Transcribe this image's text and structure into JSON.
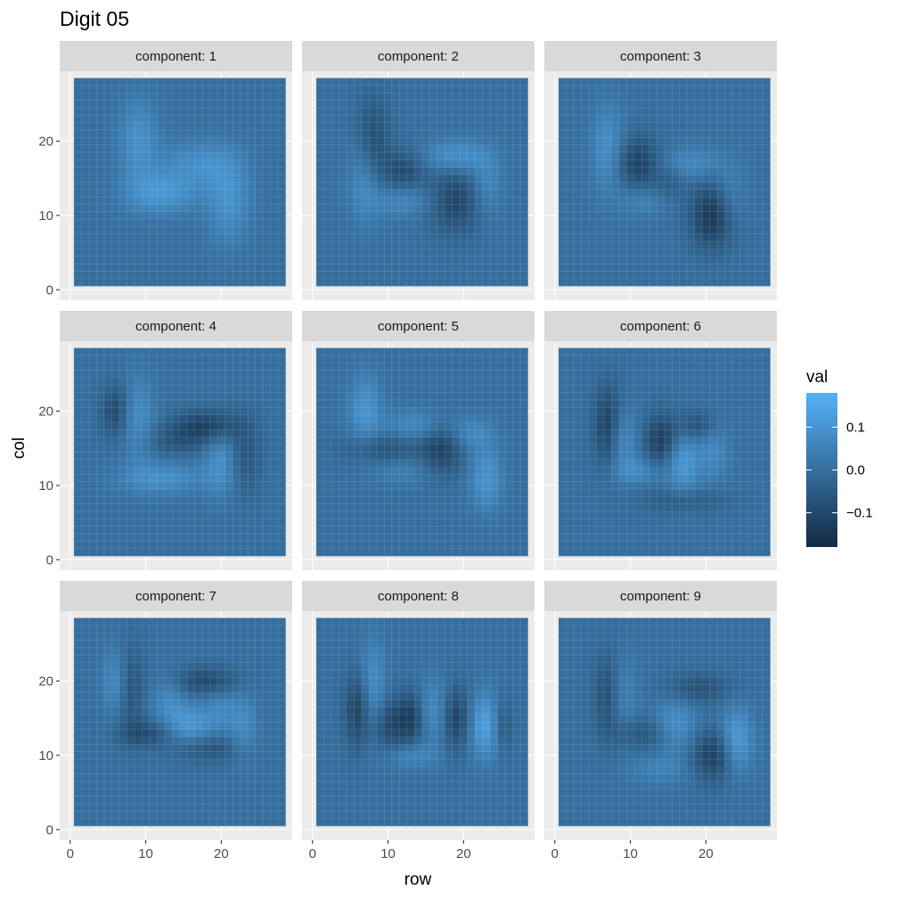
{
  "chart_data": {
    "type": "heatmap",
    "title": "Digit 05",
    "xlabel": "row",
    "ylabel": "col",
    "facet_prefix": "component: ",
    "facets": [
      "1",
      "2",
      "3",
      "4",
      "5",
      "6",
      "7",
      "8",
      "9"
    ],
    "grid_size": [
      28,
      28
    ],
    "xlim": [
      0,
      28
    ],
    "ylim": [
      0,
      28
    ],
    "x_ticks": [
      0,
      10,
      20
    ],
    "x_tick_labels": [
      "0",
      "10",
      "20"
    ],
    "y_ticks": [
      0,
      10,
      20
    ],
    "y_tick_labels": [
      "0",
      "10",
      "20"
    ],
    "legend": {
      "title": "val",
      "position": "right",
      "breaks": [
        0.1,
        0.0,
        -0.1
      ],
      "labels": [
        "0.1",
        "0.0",
        "−0.1"
      ],
      "range": [
        -0.18,
        0.18
      ],
      "low_color": "#132B43",
      "high_color": "#56B1F7"
    },
    "components": [
      {
        "name": "component: 1",
        "blobs": [
          {
            "x": 9,
            "y": 20,
            "sx": 1.8,
            "sy": 4,
            "v": 0.09
          },
          {
            "x": 12,
            "y": 13,
            "sx": 3.5,
            "sy": 2,
            "v": 0.1
          },
          {
            "x": 17,
            "y": 17,
            "sx": 3.5,
            "sy": 2.2,
            "v": 0.08
          },
          {
            "x": 21,
            "y": 12,
            "sx": 2,
            "sy": 4,
            "v": 0.09
          }
        ]
      },
      {
        "name": "component: 2",
        "blobs": [
          {
            "x": 8,
            "y": 20,
            "sx": 1.5,
            "sy": 4,
            "v": -0.1
          },
          {
            "x": 7,
            "y": 15,
            "sx": 1.5,
            "sy": 4,
            "v": 0.08
          },
          {
            "x": 12,
            "y": 12,
            "sx": 3,
            "sy": 1.5,
            "v": 0.07
          },
          {
            "x": 12,
            "y": 16,
            "sx": 2,
            "sy": 2,
            "v": -0.09
          },
          {
            "x": 19,
            "y": 18,
            "sx": 3,
            "sy": 1.5,
            "v": 0.1
          },
          {
            "x": 19,
            "y": 12,
            "sx": 2.5,
            "sy": 3,
            "v": -0.11
          },
          {
            "x": 23,
            "y": 14,
            "sx": 1.5,
            "sy": 3,
            "v": 0.07
          }
        ]
      },
      {
        "name": "component: 3",
        "blobs": [
          {
            "x": 7,
            "y": 19,
            "sx": 1.5,
            "sy": 4,
            "v": 0.09
          },
          {
            "x": 11,
            "y": 17,
            "sx": 2,
            "sy": 2.5,
            "v": -0.12
          },
          {
            "x": 12,
            "y": 12,
            "sx": 2.5,
            "sy": 1.5,
            "v": 0.06
          },
          {
            "x": 18,
            "y": 17,
            "sx": 3,
            "sy": 1.5,
            "v": 0.07
          },
          {
            "x": 21,
            "y": 10,
            "sx": 2,
            "sy": 3,
            "v": -0.16
          },
          {
            "x": 23,
            "y": 12,
            "sx": 1.5,
            "sy": 3,
            "v": 0.07
          },
          {
            "x": 15,
            "y": 14,
            "sx": 1.5,
            "sy": 2,
            "v": -0.05
          }
        ]
      },
      {
        "name": "component: 4",
        "blobs": [
          {
            "x": 6,
            "y": 20,
            "sx": 1.3,
            "sy": 2.5,
            "v": -0.1
          },
          {
            "x": 9,
            "y": 19,
            "sx": 1.5,
            "sy": 4,
            "v": 0.08
          },
          {
            "x": 12,
            "y": 11,
            "sx": 4,
            "sy": 1.5,
            "v": 0.09
          },
          {
            "x": 14,
            "y": 16,
            "sx": 3,
            "sy": 1.5,
            "v": -0.06
          },
          {
            "x": 18,
            "y": 18,
            "sx": 3,
            "sy": 1.5,
            "v": -0.12
          },
          {
            "x": 20,
            "y": 13,
            "sx": 1.5,
            "sy": 3,
            "v": 0.09
          },
          {
            "x": 23,
            "y": 14,
            "sx": 1.5,
            "sy": 3.5,
            "v": -0.07
          }
        ]
      },
      {
        "name": "component: 5",
        "blobs": [
          {
            "x": 7,
            "y": 20,
            "sx": 1.5,
            "sy": 3.5,
            "v": 0.1
          },
          {
            "x": 9,
            "y": 15,
            "sx": 3.5,
            "sy": 1.5,
            "v": -0.08
          },
          {
            "x": 14,
            "y": 18,
            "sx": 3,
            "sy": 1.5,
            "v": 0.08
          },
          {
            "x": 17,
            "y": 15,
            "sx": 2,
            "sy": 2.5,
            "v": -0.12
          },
          {
            "x": 21,
            "y": 17,
            "sx": 2,
            "sy": 1.5,
            "v": 0.07
          },
          {
            "x": 23,
            "y": 11,
            "sx": 1.5,
            "sy": 3,
            "v": 0.1
          },
          {
            "x": 12,
            "y": 12,
            "sx": 3,
            "sy": 1.3,
            "v": 0.05
          }
        ]
      },
      {
        "name": "component: 6",
        "blobs": [
          {
            "x": 7,
            "y": 18,
            "sx": 1.3,
            "sy": 4,
            "v": -0.12
          },
          {
            "x": 9,
            "y": 16,
            "sx": 1.3,
            "sy": 3,
            "v": 0.08
          },
          {
            "x": 11,
            "y": 12,
            "sx": 2.5,
            "sy": 1.3,
            "v": 0.07
          },
          {
            "x": 14,
            "y": 16,
            "sx": 1.5,
            "sy": 2.5,
            "v": -0.13
          },
          {
            "x": 17,
            "y": 13,
            "sx": 1.5,
            "sy": 3,
            "v": 0.11
          },
          {
            "x": 19,
            "y": 18,
            "sx": 2,
            "sy": 1.5,
            "v": -0.09
          },
          {
            "x": 21,
            "y": 15,
            "sx": 1.5,
            "sy": 3,
            "v": 0.07
          },
          {
            "x": 17,
            "y": 8,
            "sx": 4,
            "sy": 1.2,
            "v": -0.06
          }
        ]
      },
      {
        "name": "component: 7",
        "blobs": [
          {
            "x": 6,
            "y": 20,
            "sx": 1.2,
            "sy": 3,
            "v": 0.08
          },
          {
            "x": 8,
            "y": 19,
            "sx": 1.2,
            "sy": 4,
            "v": -0.08
          },
          {
            "x": 10,
            "y": 13,
            "sx": 2.5,
            "sy": 1.3,
            "v": -0.09
          },
          {
            "x": 13,
            "y": 17,
            "sx": 1.5,
            "sy": 2.5,
            "v": 0.07
          },
          {
            "x": 16,
            "y": 14,
            "sx": 2,
            "sy": 2,
            "v": 0.11
          },
          {
            "x": 18,
            "y": 20,
            "sx": 3,
            "sy": 1.3,
            "v": -0.1
          },
          {
            "x": 20,
            "y": 16,
            "sx": 1.5,
            "sy": 2,
            "v": 0.06
          },
          {
            "x": 18,
            "y": 11,
            "sx": 3,
            "sy": 1.3,
            "v": -0.08
          },
          {
            "x": 23,
            "y": 14,
            "sx": 1.3,
            "sy": 3,
            "v": 0.07
          }
        ]
      },
      {
        "name": "component: 8",
        "blobs": [
          {
            "x": 6,
            "y": 16,
            "sx": 1.2,
            "sy": 3.5,
            "v": -0.12
          },
          {
            "x": 8,
            "y": 19,
            "sx": 1.2,
            "sy": 4.5,
            "v": 0.09
          },
          {
            "x": 10,
            "y": 14,
            "sx": 1.5,
            "sy": 2.5,
            "v": -0.1
          },
          {
            "x": 13,
            "y": 10,
            "sx": 2.5,
            "sy": 1.2,
            "v": 0.07
          },
          {
            "x": 13,
            "y": 15,
            "sx": 1.3,
            "sy": 2.5,
            "v": -0.13
          },
          {
            "x": 16,
            "y": 16,
            "sx": 1.5,
            "sy": 3,
            "v": 0.08
          },
          {
            "x": 19,
            "y": 15,
            "sx": 1.3,
            "sy": 3,
            "v": -0.12
          },
          {
            "x": 23,
            "y": 14,
            "sx": 1.5,
            "sy": 3,
            "v": 0.14
          },
          {
            "x": 25,
            "y": 14,
            "sx": 1,
            "sy": 2.5,
            "v": -0.09
          }
        ]
      },
      {
        "name": "component: 9",
        "blobs": [
          {
            "x": 7,
            "y": 18,
            "sx": 1.3,
            "sy": 4,
            "v": -0.09
          },
          {
            "x": 9,
            "y": 18,
            "sx": 1.3,
            "sy": 3.5,
            "v": 0.06
          },
          {
            "x": 12,
            "y": 13,
            "sx": 3,
            "sy": 1.5,
            "v": -0.07
          },
          {
            "x": 16,
            "y": 14,
            "sx": 2,
            "sy": 2.5,
            "v": 0.1
          },
          {
            "x": 19,
            "y": 19,
            "sx": 3,
            "sy": 1.5,
            "v": -0.08
          },
          {
            "x": 21,
            "y": 10,
            "sx": 2,
            "sy": 2.5,
            "v": -0.13
          },
          {
            "x": 24,
            "y": 12,
            "sx": 1.5,
            "sy": 3,
            "v": 0.13
          },
          {
            "x": 14,
            "y": 8,
            "sx": 3,
            "sy": 1.3,
            "v": 0.05
          }
        ]
      }
    ]
  }
}
